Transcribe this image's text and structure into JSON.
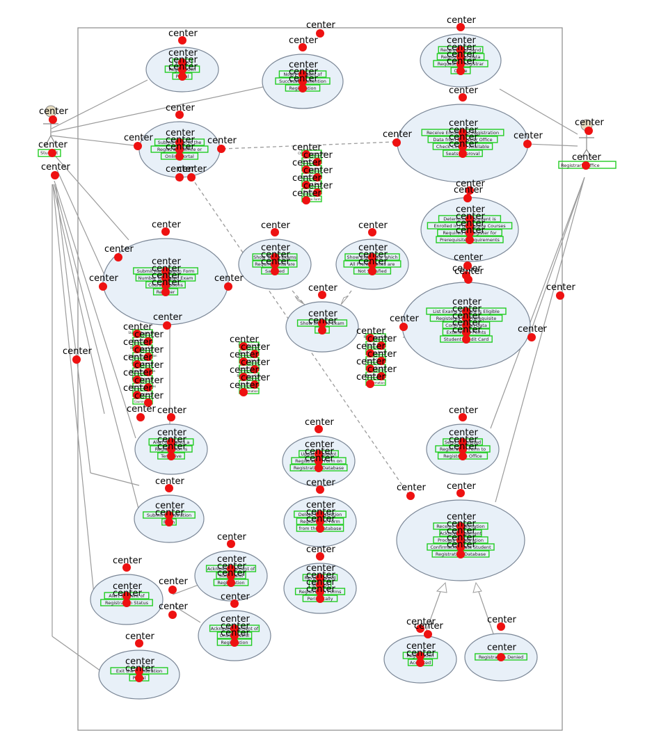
{
  "annotation_word": "center",
  "actors": [
    {
      "id": "student",
      "label": "Student"
    },
    {
      "id": "registrar",
      "label": "Registrar's Office"
    }
  ],
  "use_cases": [
    {
      "id": "uc-login",
      "lines": [
        "Log In",
        "Registration",
        "Portal"
      ]
    },
    {
      "id": "uc-notify-rep",
      "lines": [
        "Notify Student of",
        "Successful Retention",
        "Registration"
      ]
    },
    {
      "id": "uc-receive-send",
      "lines": [
        "Receive and Send",
        "Registration Data",
        "Request to Registrar",
        "Office"
      ]
    },
    {
      "id": "uc-submit-office",
      "lines": [
        "Submit Form to the",
        "Registrar's Office or",
        "Online Portal"
      ]
    },
    {
      "id": "uc-receive-verify",
      "lines": [
        "Receive Enrollment Registration",
        "Data from Registrar Office",
        "Check Course Available",
        "Seats Approval"
      ]
    },
    {
      "id": "uc-determine",
      "lines": [
        "Determine if Student is",
        "Enrolled in Prerequisite Courses",
        "Required to Register for",
        "Prerequisite Requirements"
      ]
    },
    {
      "id": "uc-submit-form",
      "lines": [
        "Submit Registration Form",
        "Number for Listed Exam",
        "Course Options",
        "Register"
      ]
    },
    {
      "id": "uc-show-taken",
      "lines": [
        "Show Taken Exams",
        "Requirements are",
        "Satisfied"
      ]
    },
    {
      "id": "uc-show-exams",
      "lines": [
        "Show Exams for which",
        "All Prerequisites are",
        "Not Satisfied"
      ]
    },
    {
      "id": "uc-show-eligible",
      "lines": [
        "Show Eligible Exam",
        "List"
      ]
    },
    {
      "id": "uc-list-exams",
      "lines": [
        "List Exams Student is Eligible",
        "Registered for Prerequisite",
        "Confirmation Data",
        "Extensions Points",
        "Student Credit Card"
      ]
    },
    {
      "id": "uc-alert-reg",
      "lines": [
        "Alert Students a",
        "Registration is",
        "Tentative"
      ]
    },
    {
      "id": "uc-send-submitted",
      "lines": [
        "Send Submitted",
        "Registration Form to",
        "Registrar's Office"
      ]
    },
    {
      "id": "uc-update-db",
      "lines": [
        "Update Student",
        "Registration Form on",
        "Registration Database"
      ]
    },
    {
      "id": "uc-submit-reg",
      "lines": [
        "Submit Registration",
        "Form"
      ]
    },
    {
      "id": "uc-delete-reg",
      "lines": [
        "Delete Registration",
        "Registration Form",
        "from the Database"
      ]
    },
    {
      "id": "uc-receive-confirm",
      "lines": [
        "Receive Confirmation",
        "Acknowledgement",
        "Process Registration",
        "Confirmation Data Student",
        "Registration Database"
      ]
    },
    {
      "id": "uc-alert-status",
      "lines": [
        "Alert Student of",
        "Registration Status"
      ]
    },
    {
      "id": "uc-ack-success",
      "lines": [
        "Acknowledgement of",
        "Successful",
        "Registration"
      ]
    },
    {
      "id": "uc-review-saved",
      "lines": [
        "Review Saved",
        "Student",
        "Registration Forms",
        "Periodically"
      ]
    },
    {
      "id": "uc-ack-unsuccess",
      "lines": [
        "Acknowledgement of",
        "Unsuccessful",
        "Registration"
      ]
    },
    {
      "id": "uc-reg-accepted",
      "lines": [
        "Registration",
        "Accepted"
      ]
    },
    {
      "id": "uc-reg-denied",
      "lines": [
        "Registration Denied"
      ]
    },
    {
      "id": "uc-exit",
      "lines": [
        "Exit the Registration",
        "Portal"
      ]
    }
  ],
  "stray_labels": [
    {
      "id": "s1",
      "lines": [
        "Check Prerequisites",
        "Exam Course",
        "Confirmation",
        "Course Options",
        "Student Data",
        "Registration",
        "Course Form"
      ]
    },
    {
      "id": "s2",
      "lines": [
        "Student Registration",
        "Exam Options",
        "Registration Form",
        "Course Confirmation",
        "Course Number",
        "Verify Registration",
        "Exam Selection",
        "Exam Prerequisites",
        "Student List",
        "Course Date"
      ]
    },
    {
      "id": "s3",
      "lines": [
        "Student Course",
        "Exam Course",
        "Check Status",
        "Course Options",
        "Registration Data",
        "Course Fees",
        "Confirmation"
      ]
    },
    {
      "id": "s4",
      "lines": [
        "Registration Data",
        "Course Exam",
        "Course Form",
        "Course Options",
        "Exam Grades",
        "Student Course",
        "Confirmation"
      ]
    }
  ]
}
